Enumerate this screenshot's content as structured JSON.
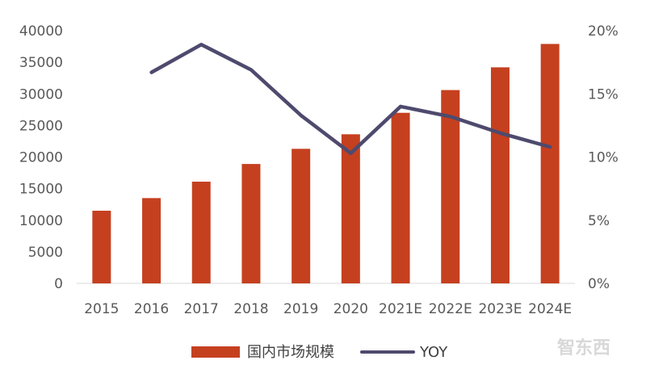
{
  "chart_data": {
    "type": "bar",
    "categories": [
      "2015",
      "2016",
      "2017",
      "2018",
      "2019",
      "2020",
      "2021E",
      "2022E",
      "2023E",
      "2024E"
    ],
    "series": [
      {
        "name": "国内市场规模",
        "type": "bar",
        "axis": "left",
        "color": "#c5401f",
        "values": [
          11500,
          13500,
          16100,
          18900,
          21300,
          23600,
          27000,
          30600,
          34200,
          37900
        ]
      },
      {
        "name": "YOY",
        "type": "line",
        "axis": "right",
        "color": "#4e4a6e",
        "values": [
          null,
          16.7,
          18.9,
          16.9,
          13.3,
          10.3,
          14.0,
          13.2,
          11.9,
          10.8
        ]
      }
    ],
    "y_left": {
      "ylim": [
        0,
        40000
      ],
      "ticks": [
        "0",
        "5000",
        "10000",
        "15000",
        "20000",
        "25000",
        "30000",
        "35000",
        "40000"
      ]
    },
    "y_right": {
      "ylim": [
        0,
        20
      ],
      "ticks": [
        "0%",
        "5%",
        "10%",
        "15%",
        "20%"
      ]
    },
    "legend": {
      "position": "bottom"
    },
    "grid": false,
    "watermark": "智东西"
  }
}
